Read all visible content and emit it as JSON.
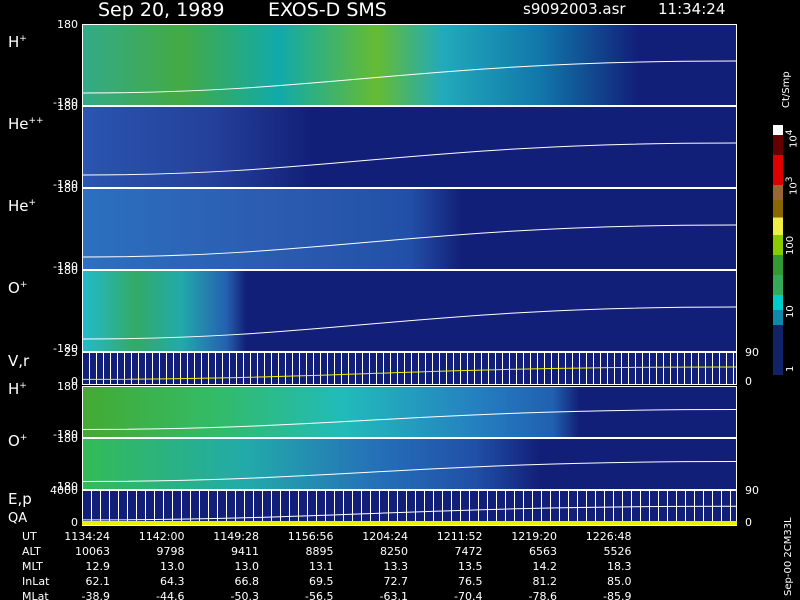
{
  "header": {
    "date": "Sep 20, 1989",
    "instrument": "EXOS-D SMS",
    "file": "s9092003.asr",
    "time": "11:34:24"
  },
  "panels": [
    {
      "label": "H",
      "sup": "+",
      "ymax": "180",
      "ymin": "-180"
    },
    {
      "label": "He",
      "sup": "++",
      "ymax": "180",
      "ymin": "-180"
    },
    {
      "label": "He",
      "sup": "+",
      "ymax": "180",
      "ymin": "-180"
    },
    {
      "label": "O",
      "sup": "+",
      "ymax": "180",
      "ymin": "-180"
    },
    {
      "label": "V,r",
      "ymax": "25",
      "ymin": "0",
      "right_max": "90",
      "right_min": "0"
    },
    {
      "label": "H",
      "sup": "+",
      "ymax": "180",
      "ymin": "-180"
    },
    {
      "label": "O",
      "sup": "+",
      "ymax": "180",
      "ymin": "-180"
    },
    {
      "label": "E,p",
      "sub_label": "QA",
      "ymax": "4000",
      "ymin": "0",
      "right_max": "90",
      "right_min": "0"
    }
  ],
  "colorbar": {
    "unit": "Ct/Smp",
    "labels": [
      {
        "base": "10",
        "exp": "4"
      },
      {
        "base": "10",
        "exp": "3"
      },
      {
        "base": "100"
      },
      {
        "base": "10"
      },
      {
        "base": "1"
      }
    ]
  },
  "side_note": "Sep-00 2CM33L",
  "table": {
    "row_labels": [
      "UT",
      "ALT",
      "MLT",
      "InLat",
      "MLat"
    ],
    "rows": [
      [
        "1134:24",
        "1142:00",
        "1149:28",
        "1156:56",
        "1204:24",
        "1211:52",
        "1219:20",
        "1226:48"
      ],
      [
        "10063",
        "9798",
        "9411",
        "8895",
        "8250",
        "7472",
        "6563",
        "5526"
      ],
      [
        "12.9",
        "13.0",
        "13.0",
        "13.1",
        "13.3",
        "13.5",
        "14.2",
        "18.3"
      ],
      [
        "62.1",
        "64.3",
        "66.8",
        "69.5",
        "72.7",
        "76.5",
        "81.2",
        "85.0"
      ],
      [
        "-38.9",
        "-44.6",
        "-50.3",
        "-56.5",
        "-63.1",
        "-70.4",
        "-78.6",
        "-85.9"
      ]
    ]
  }
}
